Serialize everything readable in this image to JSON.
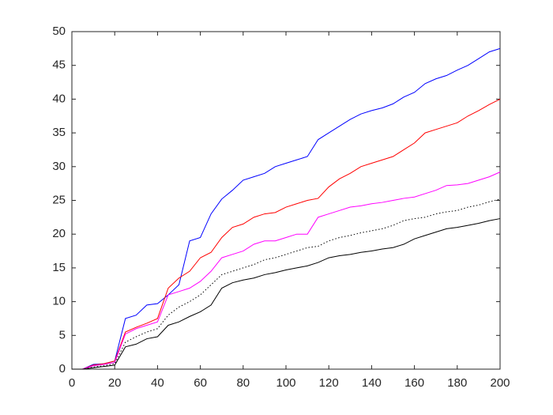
{
  "chart_data": {
    "type": "line",
    "x": [
      0,
      5,
      10,
      15,
      20,
      25,
      30,
      35,
      40,
      45,
      50,
      55,
      60,
      65,
      70,
      75,
      80,
      85,
      90,
      95,
      100,
      105,
      110,
      115,
      120,
      125,
      130,
      135,
      140,
      145,
      150,
      155,
      160,
      165,
      170,
      175,
      180,
      185,
      190,
      195,
      200
    ],
    "series": [
      {
        "color": "#0000ff",
        "dash": "solid",
        "values": [
          0,
          0,
          0.7,
          0.8,
          1.2,
          7.5,
          8,
          9.5,
          9.7,
          11,
          12.5,
          19,
          19.5,
          23,
          25.2,
          26.5,
          28,
          28.5,
          29,
          30,
          30.5,
          31,
          31.5,
          34,
          35,
          36,
          37,
          37.8,
          38.3,
          38.7,
          39.3,
          40.3,
          41,
          42.3,
          43,
          43.5,
          44.3,
          45,
          46,
          47,
          47.5
        ]
      },
      {
        "color": "#ff0000",
        "dash": "solid",
        "values": [
          0,
          0,
          0.6,
          0.8,
          1.2,
          5.5,
          6.2,
          6.8,
          7.5,
          12,
          13.5,
          14.5,
          16.5,
          17.3,
          19.5,
          21,
          21.5,
          22.5,
          23,
          23.2,
          24,
          24.5,
          25,
          25.3,
          27,
          28.2,
          29,
          30,
          30.5,
          31,
          31.5,
          32.5,
          33.5,
          35,
          35.5,
          36,
          36.5,
          37.5,
          38.3,
          39.2,
          40
        ]
      },
      {
        "color": "#ff00ff",
        "dash": "solid",
        "values": [
          0,
          0,
          0.5,
          0.7,
          1,
          5.2,
          6,
          6.5,
          7,
          11,
          11.5,
          12,
          13,
          14.5,
          16.5,
          17,
          17.5,
          18.5,
          19,
          19,
          19.5,
          20,
          20,
          22.5,
          23,
          23.5,
          24,
          24.2,
          24.5,
          24.7,
          25,
          25.3,
          25.5,
          26,
          26.5,
          27.2,
          27.3,
          27.5,
          28,
          28.5,
          29.2
        ]
      },
      {
        "color": "#000000",
        "dash": "dotted",
        "values": [
          0,
          0,
          0.3,
          0.5,
          0.8,
          4,
          4.8,
          5.5,
          6,
          8,
          9.2,
          10,
          11,
          12.5,
          14,
          14.5,
          15,
          15.5,
          16.2,
          16.5,
          17,
          17.5,
          18,
          18.2,
          19,
          19.5,
          19.8,
          20.2,
          20.5,
          20.8,
          21.3,
          22,
          22.3,
          22.5,
          23,
          23.3,
          23.5,
          24,
          24.3,
          24.8,
          25.2
        ]
      },
      {
        "color": "#000000",
        "dash": "solid",
        "values": [
          0,
          0,
          0.2,
          0.4,
          0.6,
          3.3,
          3.7,
          4.5,
          4.8,
          6.5,
          7,
          7.8,
          8.5,
          9.5,
          12,
          12.8,
          13.2,
          13.5,
          14,
          14.3,
          14.7,
          15,
          15.3,
          15.8,
          16.5,
          16.8,
          17,
          17.3,
          17.5,
          17.8,
          18,
          18.5,
          19.3,
          19.8,
          20.3,
          20.8,
          21,
          21.3,
          21.6,
          22,
          22.3
        ]
      }
    ],
    "xlim": [
      0,
      200
    ],
    "xticks": [
      0,
      20,
      40,
      60,
      80,
      100,
      120,
      140,
      160,
      180,
      200
    ],
    "ylim": [
      0,
      50
    ],
    "yticks": [
      0,
      5,
      10,
      15,
      20,
      25,
      30,
      35,
      40,
      45,
      50
    ],
    "grid": false
  }
}
